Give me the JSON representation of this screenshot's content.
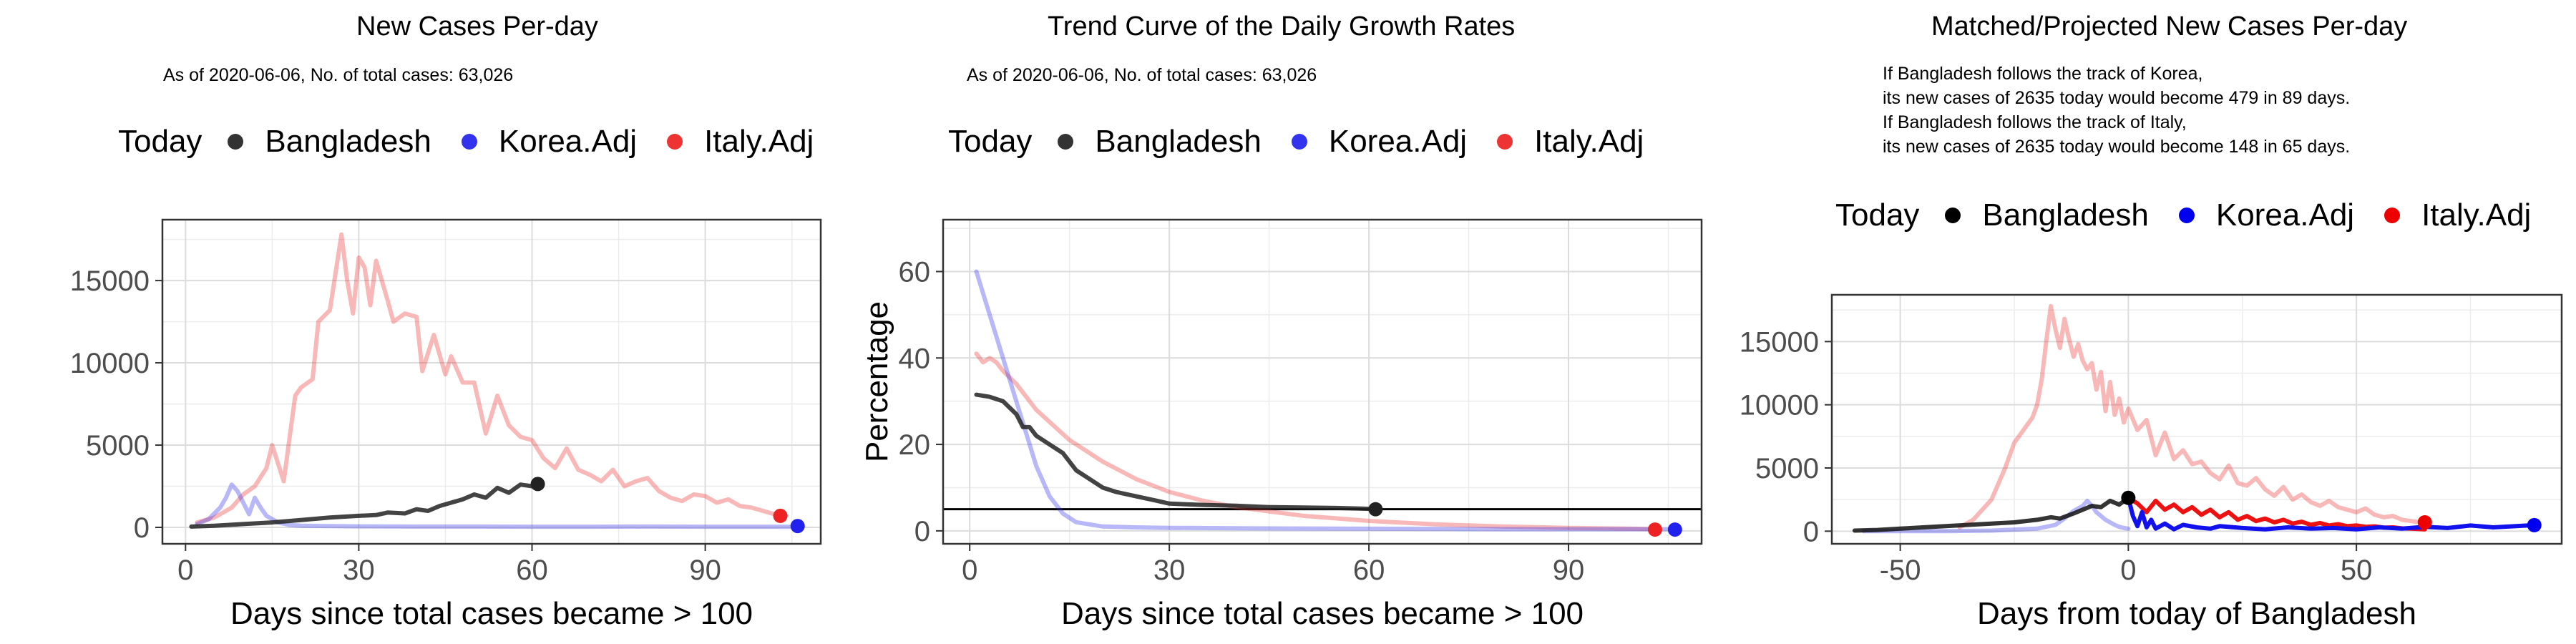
{
  "chart_data": [
    {
      "type": "line",
      "title": "New Cases Per-day",
      "subtitle": "As of 2020-06-06, No. of total cases: 63,026",
      "legend": {
        "title": "Today",
        "items": [
          {
            "label": "Bangladesh",
            "color": "#222222"
          },
          {
            "label": "Korea.Adj",
            "color": "#3333ee"
          },
          {
            "label": "Italy.Adj",
            "color": "#ee3333"
          }
        ]
      },
      "xlabel": "Days since total cases became > 100",
      "ylabel": "",
      "xlim": [
        -4,
        110
      ],
      "ylim": [
        -1000,
        18700
      ],
      "xticks": [
        0,
        30,
        60,
        90
      ],
      "yticks": [
        0,
        5000,
        10000,
        15000
      ],
      "ytick_labels": [
        "0",
        "5000",
        "10000",
        "15000"
      ],
      "series": [
        {
          "name": "Italy.Adj",
          "color": "#ee3333",
          "opacity": 0.35,
          "x": [
            2,
            5,
            8,
            10,
            12,
            14,
            15,
            17,
            19,
            20,
            22,
            23,
            25,
            27,
            28,
            29,
            30,
            31,
            32,
            33,
            35,
            36,
            38,
            40,
            41,
            43,
            45,
            46,
            48,
            50,
            52,
            54,
            56,
            58,
            60,
            62,
            64,
            66,
            68,
            70,
            72,
            74,
            76,
            78,
            80,
            82,
            84,
            86,
            88,
            90,
            92,
            94,
            96,
            98,
            100,
            102,
            104
          ],
          "y": [
            300,
            600,
            1200,
            2000,
            2500,
            3600,
            5000,
            2800,
            8000,
            8500,
            9000,
            12500,
            13200,
            17800,
            15000,
            13000,
            16400,
            15800,
            13500,
            16200,
            13800,
            12500,
            13000,
            12800,
            9500,
            11700,
            9300,
            10400,
            8800,
            8800,
            5700,
            8000,
            6200,
            5500,
            5300,
            4200,
            3600,
            4800,
            3500,
            3200,
            2800,
            3500,
            2500,
            2800,
            3000,
            2200,
            1800,
            1600,
            2000,
            1900,
            1500,
            1700,
            1300,
            1200,
            1000,
            800,
            700
          ]
        },
        {
          "name": "Korea.Adj",
          "color": "#3333ee",
          "opacity": 0.35,
          "x": [
            2,
            4,
            6,
            7,
            8,
            9,
            10,
            11,
            12,
            13,
            14,
            16,
            18,
            20,
            25,
            30,
            40,
            50,
            60,
            70,
            80,
            90,
            100,
            106
          ],
          "y": [
            200,
            500,
            1200,
            1800,
            2600,
            2200,
            1500,
            800,
            1800,
            1200,
            700,
            300,
            150,
            100,
            80,
            60,
            50,
            50,
            40,
            40,
            50,
            40,
            40,
            30
          ]
        },
        {
          "name": "Bangladesh",
          "color": "#222222",
          "opacity": 0.85,
          "x": [
            1,
            5,
            10,
            15,
            20,
            25,
            30,
            33,
            35,
            38,
            40,
            42,
            44,
            46,
            48,
            50,
            52,
            54,
            56,
            58,
            60,
            61
          ],
          "y": [
            50,
            100,
            200,
            300,
            450,
            600,
            700,
            750,
            900,
            850,
            1100,
            1000,
            1300,
            1500,
            1700,
            2000,
            1800,
            2400,
            2100,
            2600,
            2500,
            2635
          ]
        }
      ],
      "points": [
        {
          "name": "Bangladesh",
          "x": 61,
          "y": 2635,
          "color": "#222222"
        },
        {
          "name": "Italy.Adj",
          "x": 103,
          "y": 700,
          "color": "#ee2222"
        },
        {
          "name": "Korea.Adj",
          "x": 106,
          "y": 80,
          "color": "#2222ee"
        }
      ]
    },
    {
      "type": "line",
      "title": "Trend Curve of the Daily Growth Rates",
      "subtitle": "As of 2020-06-06, No. of total cases: 63,026",
      "legend": {
        "title": "Today",
        "items": [
          {
            "label": "Bangladesh",
            "color": "#222222"
          },
          {
            "label": "Korea.Adj",
            "color": "#3333ee"
          },
          {
            "label": "Italy.Adj",
            "color": "#ee3333"
          }
        ]
      },
      "xlabel": "Days since total cases became > 100",
      "ylabel": "Percentage",
      "xlim": [
        -4,
        110
      ],
      "ylim": [
        -3,
        72
      ],
      "xticks": [
        0,
        30,
        60,
        90
      ],
      "yticks": [
        0,
        20,
        40,
        60
      ],
      "ytick_labels": [
        "0",
        "20",
        "40",
        "60"
      ],
      "hline": 5,
      "series": [
        {
          "name": "Italy.Adj",
          "color": "#ee3333",
          "opacity": 0.35,
          "x": [
            1,
            2,
            3,
            4,
            5,
            7,
            10,
            15,
            20,
            25,
            30,
            35,
            40,
            50,
            60,
            70,
            80,
            90,
            100,
            103
          ],
          "y": [
            41,
            39,
            40,
            39,
            37,
            34,
            28,
            21,
            16,
            12,
            9,
            7,
            5.5,
            3.5,
            2.3,
            1.5,
            1,
            0.7,
            0.5,
            0.4
          ]
        },
        {
          "name": "Korea.Adj",
          "color": "#3333ee",
          "opacity": 0.35,
          "x": [
            1,
            2,
            3,
            4,
            5,
            6,
            7,
            8,
            10,
            12,
            14,
            16,
            18,
            20,
            25,
            30,
            40,
            60,
            80,
            100,
            106
          ],
          "y": [
            60,
            55,
            50,
            45,
            40,
            35,
            30,
            25,
            15,
            8,
            4,
            2,
            1.5,
            1,
            0.8,
            0.7,
            0.6,
            0.5,
            0.4,
            0.4,
            0.4
          ]
        },
        {
          "name": "Bangladesh",
          "color": "#222222",
          "opacity": 0.85,
          "x": [
            1,
            3,
            5,
            7,
            8,
            9,
            10,
            12,
            14,
            16,
            18,
            20,
            22,
            25,
            28,
            30,
            35,
            40,
            45,
            50,
            55,
            60,
            61
          ],
          "y": [
            31.5,
            31,
            30,
            27,
            24,
            24,
            22,
            20,
            18,
            14,
            12,
            10,
            9,
            8,
            7,
            6.3,
            6,
            5.8,
            5.5,
            5.4,
            5.3,
            5.1,
            5
          ]
        }
      ],
      "points": [
        {
          "name": "Bangladesh",
          "x": 61,
          "y": 5,
          "color": "#222222"
        },
        {
          "name": "Italy.Adj",
          "x": 103,
          "y": 0.3,
          "color": "#ee2222"
        },
        {
          "name": "Korea.Adj",
          "x": 106,
          "y": 0.3,
          "color": "#2222ee"
        }
      ]
    },
    {
      "type": "line",
      "title": "Matched/Projected New Cases Per-day",
      "subtitle_lines": [
        "If Bangladesh follows the track of Korea,",
        "its new cases of 2635 today would become 479 in 89 days.",
        "If Bangladesh follows the track of Italy,",
        "its new cases of 2635 today would become 148 in 65 days."
      ],
      "legend": {
        "title": "Today",
        "items": [
          {
            "label": "Bangladesh",
            "color": "#000000"
          },
          {
            "label": "Korea.Adj",
            "color": "#0000ee"
          },
          {
            "label": "Italy.Adj",
            "color": "#ee0000"
          }
        ]
      },
      "xlabel": "Days from today of Bangladesh",
      "ylabel": "",
      "xlim": [
        -65,
        95
      ],
      "ylim": [
        -1000,
        18700
      ],
      "xticks": [
        -50,
        0,
        50
      ],
      "yticks": [
        0,
        5000,
        10000,
        15000
      ],
      "ytick_labels": [
        "0",
        "5000",
        "10000",
        "15000"
      ],
      "series": [
        {
          "name": "Italy.Adj (history)",
          "color": "#ee3333",
          "opacity": 0.35,
          "x": [
            -37,
            -34,
            -30,
            -27,
            -25,
            -23,
            -21,
            -20,
            -19,
            -18,
            -17,
            -16,
            -15,
            -14,
            -13,
            -12,
            -11,
            -10,
            -9,
            -8,
            -7,
            -6,
            -5,
            -4,
            -3,
            -2,
            -1,
            0,
            2,
            4,
            6,
            8,
            10,
            12,
            14,
            16,
            18,
            20,
            22,
            24,
            26,
            28,
            30,
            32,
            34,
            36,
            38,
            40,
            42,
            44,
            46,
            48,
            50,
            52,
            54,
            56,
            58,
            60,
            62,
            64
          ],
          "y": [
            300,
            900,
            2500,
            5000,
            7000,
            8000,
            9000,
            10000,
            12000,
            15000,
            17800,
            16000,
            14500,
            16800,
            15200,
            13800,
            14800,
            13500,
            12800,
            13300,
            11200,
            12600,
            9500,
            11800,
            9200,
            10500,
            8600,
            9700,
            8000,
            8800,
            6000,
            7800,
            5700,
            6400,
            5300,
            5500,
            4600,
            4100,
            5200,
            3800,
            3600,
            4200,
            3300,
            2800,
            3500,
            2500,
            2900,
            2300,
            2000,
            2400,
            1900,
            1700,
            1500,
            1800,
            1300,
            1100,
            1200,
            900,
            800,
            700
          ]
        },
        {
          "name": "Korea.Adj (history)",
          "color": "#3333ee",
          "opacity": 0.35,
          "x": [
            -58,
            -50,
            -40,
            -30,
            -20,
            -16,
            -14,
            -12,
            -10,
            -9,
            -8,
            -7,
            -6,
            -5,
            -4,
            -3,
            -2,
            -1,
            0
          ],
          "y": [
            0,
            0,
            0,
            50,
            200,
            500,
            1000,
            1600,
            2000,
            2400,
            2000,
            1500,
            1200,
            900,
            700,
            500,
            350,
            250,
            200
          ]
        },
        {
          "name": "Bangladesh",
          "color": "#111111",
          "opacity": 0.85,
          "x": [
            -60,
            -55,
            -50,
            -45,
            -40,
            -35,
            -30,
            -25,
            -20,
            -17,
            -15,
            -12,
            -10,
            -8,
            -6,
            -4,
            -2,
            0
          ],
          "y": [
            50,
            100,
            200,
            300,
            400,
            500,
            600,
            700,
            900,
            1100,
            1000,
            1400,
            1700,
            2000,
            1900,
            2400,
            2100,
            2635
          ]
        },
        {
          "name": "Italy.Adj (projected)",
          "color": "#ee1111",
          "opacity": 1,
          "x": [
            0,
            2,
            4,
            6,
            8,
            10,
            12,
            14,
            16,
            18,
            20,
            22,
            24,
            26,
            28,
            30,
            32,
            34,
            36,
            38,
            40,
            42,
            44,
            46,
            48,
            50,
            52,
            54,
            56,
            58,
            60,
            62,
            65
          ],
          "y": [
            2635,
            2200,
            1500,
            2400,
            1700,
            2100,
            1500,
            1900,
            1300,
            1700,
            1100,
            1500,
            900,
            1200,
            800,
            1000,
            700,
            900,
            600,
            750,
            500,
            650,
            450,
            550,
            400,
            450,
            350,
            380,
            280,
            300,
            220,
            200,
            148
          ]
        },
        {
          "name": "Korea.Adj (projected)",
          "color": "#1111ee",
          "opacity": 1,
          "x": [
            0,
            1,
            2,
            3,
            4,
            5,
            6,
            8,
            10,
            12,
            15,
            18,
            20,
            25,
            30,
            35,
            40,
            45,
            50,
            55,
            60,
            65,
            70,
            75,
            80,
            85,
            89
          ],
          "y": [
            2635,
            1200,
            400,
            1500,
            300,
            900,
            200,
            600,
            150,
            500,
            300,
            200,
            400,
            250,
            150,
            300,
            200,
            250,
            150,
            300,
            200,
            350,
            250,
            450,
            300,
            400,
            479
          ]
        }
      ],
      "points": [
        {
          "name": "Bangladesh",
          "x": 0,
          "y": 2635,
          "color": "#000000"
        },
        {
          "name": "Italy.Adj",
          "x": 65,
          "y": 700,
          "color": "#ee0000"
        },
        {
          "name": "Korea.Adj",
          "x": 89,
          "y": 479,
          "color": "#0000ee"
        }
      ]
    }
  ]
}
